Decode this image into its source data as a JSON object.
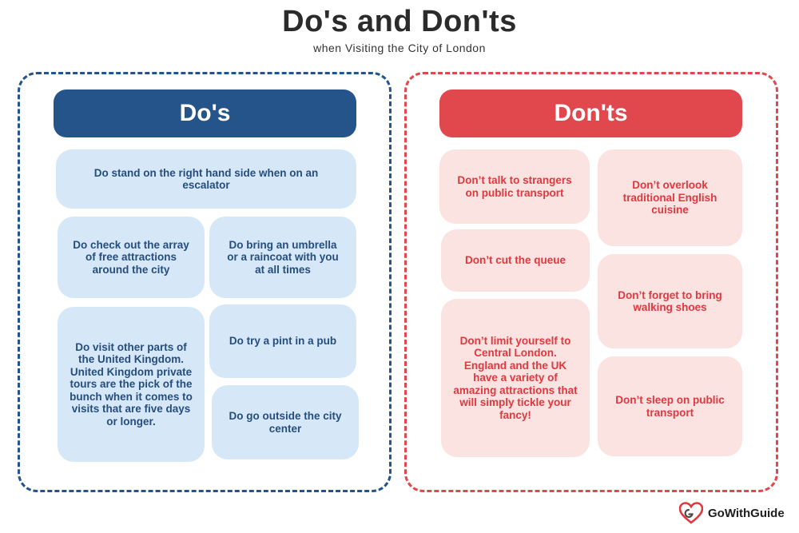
{
  "title": "Do's and Don'ts",
  "subtitle": "when Visiting the City of London",
  "dos": {
    "header": "Do's",
    "items": [
      "Do stand on the right hand side when on an escalator",
      "Do check out the array of free attractions around the city",
      "Do bring an umbrella or a raincoat with you at all times",
      "Do visit other parts of the United Kingdom. United Kingdom private tours are the pick of the bunch when it comes to visits that are five days or longer.",
      "Do try a pint in a pub",
      "Do go outside the city center"
    ]
  },
  "donts": {
    "header": "Don'ts",
    "items": [
      "Don’t talk to strangers on public transport",
      "Don’t overlook traditional English cuisine",
      "Don’t cut the queue",
      "Don’t forget to bring walking shoes",
      "Don’t limit yourself to Central London. England and the UK have a variety of amazing attractions that will simply tickle your fancy!",
      "Don’t sleep on public transport"
    ]
  },
  "brand": {
    "name": "GoWithGuide",
    "icon": "gowithguide-logo-icon"
  },
  "colors": {
    "dos_accent": "#25548a",
    "donts_accent": "#e0484e",
    "dos_card": "#d6e8f8",
    "donts_card": "#fbe3e1"
  }
}
